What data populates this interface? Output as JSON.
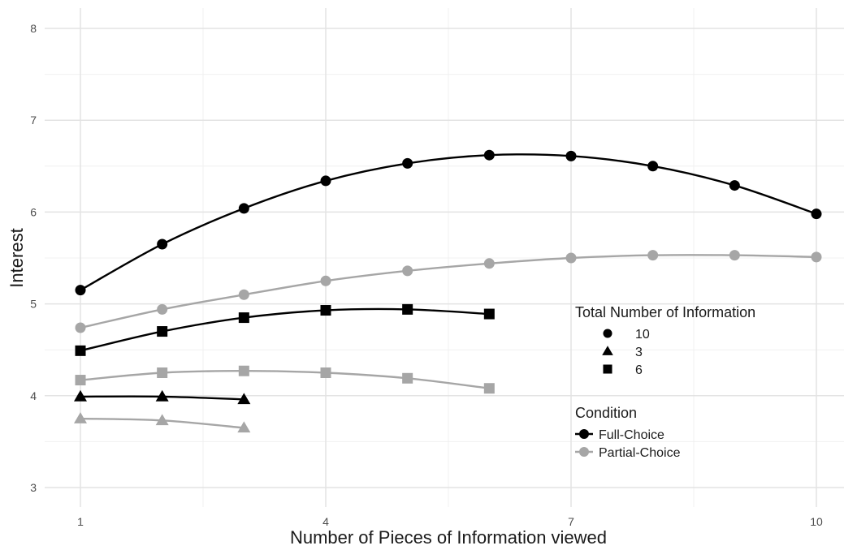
{
  "chart_data": {
    "type": "line",
    "xlabel": "Number of Pieces of Information viewed",
    "ylabel": "Interest",
    "xlim": [
      1,
      10
    ],
    "ylim": [
      3,
      8
    ],
    "x_ticks": [
      1,
      4,
      7,
      10
    ],
    "y_ticks": [
      3,
      4,
      5,
      6,
      7,
      8
    ],
    "grid": true,
    "legend_placement": "right",
    "colors": {
      "Full-Choice": "#000000",
      "Partial-Choice": "#a6a6a6"
    },
    "legends": [
      {
        "title": "Total Number of Information",
        "entries": [
          {
            "label": "10",
            "shape": "circle"
          },
          {
            "label": "3",
            "shape": "triangle"
          },
          {
            "label": "6",
            "shape": "square"
          }
        ]
      },
      {
        "title": "Condition",
        "entries": [
          {
            "label": "Full-Choice",
            "color": "#000000"
          },
          {
            "label": "Partial-Choice",
            "color": "#a6a6a6"
          }
        ]
      }
    ],
    "series": [
      {
        "total": "10",
        "condition": "Full-Choice",
        "shape": "circle",
        "x": [
          1,
          2,
          3,
          4,
          5,
          6,
          7,
          8,
          9,
          10
        ],
        "y": [
          5.15,
          5.65,
          6.04,
          6.34,
          6.53,
          6.62,
          6.61,
          6.5,
          6.29,
          5.98
        ]
      },
      {
        "total": "10",
        "condition": "Partial-Choice",
        "shape": "circle",
        "x": [
          1,
          2,
          3,
          4,
          5,
          6,
          7,
          8,
          9,
          10
        ],
        "y": [
          4.74,
          4.94,
          5.1,
          5.25,
          5.36,
          5.44,
          5.5,
          5.53,
          5.53,
          5.51
        ]
      },
      {
        "total": "6",
        "condition": "Full-Choice",
        "shape": "square",
        "x": [
          1,
          2,
          3,
          4,
          5,
          6
        ],
        "y": [
          4.49,
          4.7,
          4.85,
          4.93,
          4.94,
          4.89
        ]
      },
      {
        "total": "6",
        "condition": "Partial-Choice",
        "shape": "square",
        "x": [
          1,
          2,
          3,
          4,
          5,
          6
        ],
        "y": [
          4.17,
          4.25,
          4.27,
          4.25,
          4.19,
          4.08
        ]
      },
      {
        "total": "3",
        "condition": "Full-Choice",
        "shape": "triangle",
        "x": [
          1,
          2,
          3
        ],
        "y": [
          3.99,
          3.99,
          3.96
        ]
      },
      {
        "total": "3",
        "condition": "Partial-Choice",
        "shape": "triangle",
        "x": [
          1,
          2,
          3
        ],
        "y": [
          3.75,
          3.73,
          3.65
        ]
      }
    ]
  }
}
